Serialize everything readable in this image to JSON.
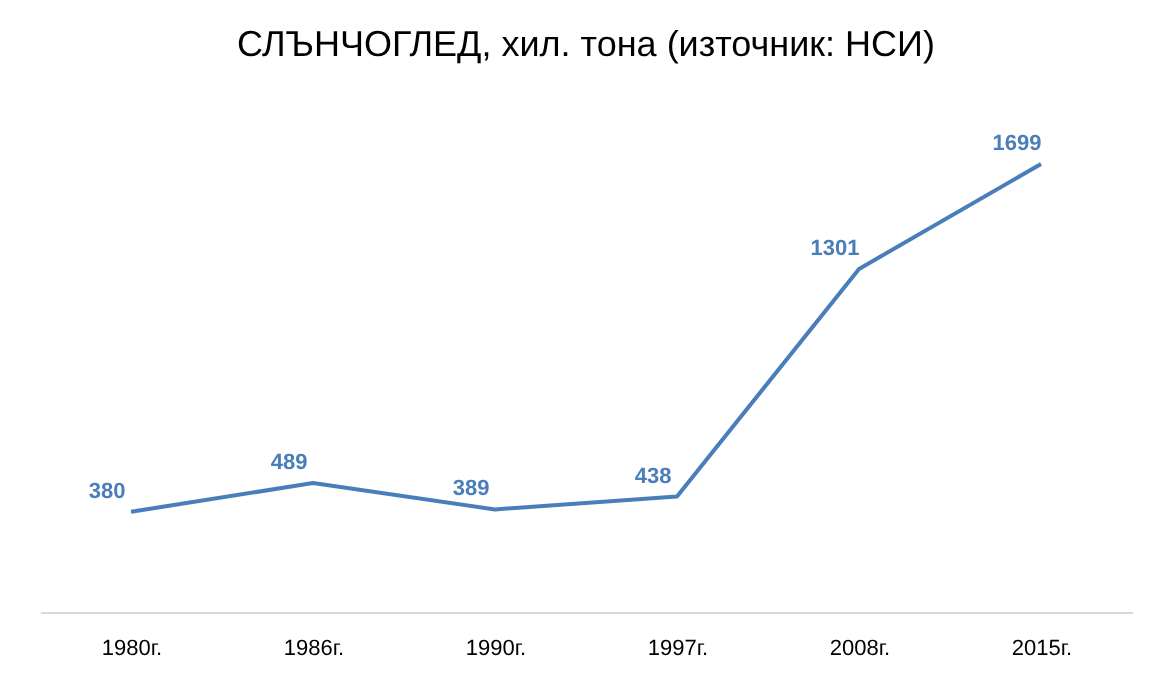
{
  "chart_data": {
    "type": "line",
    "title": "СЛЪНЧОГЛЕД, хил. тона (източник: НСИ)",
    "categories": [
      "1980г.",
      "1986г.",
      "1990г.",
      "1997г.",
      "2008г.",
      "2015г."
    ],
    "series": [
      {
        "color": "#4a7ebb",
        "values": [
          380,
          489,
          389,
          438,
          1301,
          1699
        ]
      }
    ],
    "data_labels": true
  }
}
